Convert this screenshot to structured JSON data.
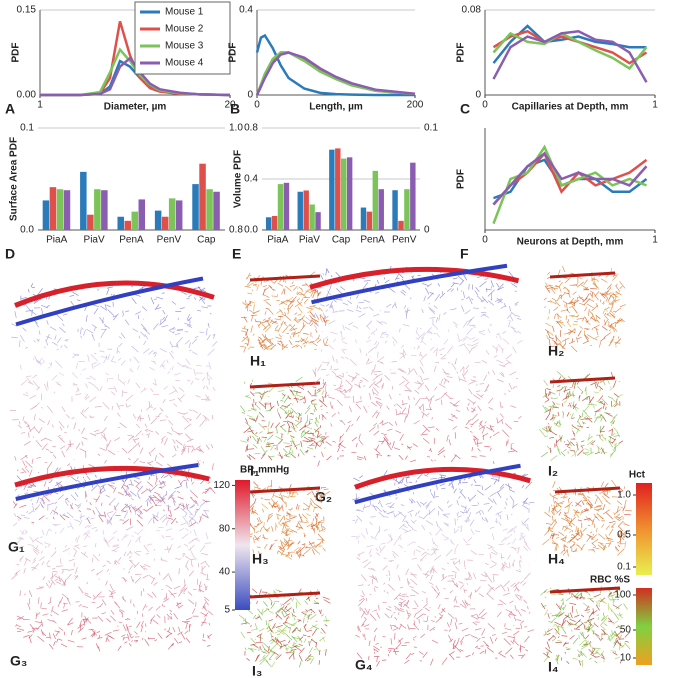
{
  "chart_data": [
    {
      "type": "line",
      "panel": "A",
      "xlabel": "Diameter, µm",
      "ylabel": "PDF",
      "xlim": [
        1,
        20
      ],
      "xticks": [
        1,
        20
      ],
      "ylim": [
        0,
        0.15
      ],
      "yticks": [
        {
          "value": 0,
          "label": "0.00"
        },
        0.15
      ],
      "legend": "top-right",
      "x": [
        1,
        3,
        5,
        7,
        8,
        9,
        10,
        11,
        12,
        13,
        15,
        17,
        20
      ],
      "series": [
        {
          "name": "Mouse 1",
          "color": "#2b7bba",
          "values": [
            0,
            0,
            0,
            0.002,
            0.015,
            0.06,
            0.05,
            0.03,
            0.016,
            0.008,
            0.003,
            0.001,
            0
          ]
        },
        {
          "name": "Mouse 2",
          "color": "#e0504a",
          "values": [
            0,
            0,
            0,
            0.003,
            0.03,
            0.13,
            0.07,
            0.03,
            0.012,
            0.006,
            0.002,
            0.001,
            0
          ]
        },
        {
          "name": "Mouse 3",
          "color": "#7cc45a",
          "values": [
            0,
            0,
            0,
            0.005,
            0.04,
            0.08,
            0.06,
            0.035,
            0.018,
            0.008,
            0.003,
            0.001,
            0
          ]
        },
        {
          "name": "Mouse 4",
          "color": "#8a5db0",
          "values": [
            0,
            0,
            0,
            0.002,
            0.01,
            0.05,
            0.065,
            0.04,
            0.02,
            0.01,
            0.004,
            0.001,
            0
          ]
        }
      ]
    },
    {
      "type": "line",
      "panel": "B",
      "xlabel": "Length, µm",
      "ylabel": "PDF",
      "xlim": [
        0,
        200
      ],
      "xticks": [
        0,
        200
      ],
      "ylim": [
        0,
        0.4
      ],
      "yticks": [
        0,
        0.4
      ],
      "x": [
        0,
        5,
        10,
        20,
        30,
        40,
        60,
        80,
        100,
        120,
        150,
        200
      ],
      "series": [
        {
          "color": "#2b7bba",
          "values": [
            0.2,
            0.27,
            0.28,
            0.22,
            0.14,
            0.08,
            0.03,
            0.01,
            0.004,
            0.002,
            0,
            0
          ]
        },
        {
          "color": "#e0504a",
          "values": [
            0,
            0.04,
            0.09,
            0.16,
            0.2,
            0.2,
            0.17,
            0.12,
            0.08,
            0.05,
            0.02,
            0.005
          ]
        },
        {
          "color": "#7cc45a",
          "values": [
            0,
            0.05,
            0.1,
            0.17,
            0.2,
            0.2,
            0.16,
            0.11,
            0.075,
            0.045,
            0.02,
            0.005
          ]
        },
        {
          "color": "#8a5db0",
          "values": [
            0,
            0.04,
            0.08,
            0.15,
            0.19,
            0.2,
            0.175,
            0.125,
            0.085,
            0.055,
            0.025,
            0.006
          ]
        }
      ]
    },
    {
      "type": "line",
      "panel": "C",
      "xlabel": "Capillaries at Depth, mm",
      "ylabel": "PDF",
      "xlim": [
        0,
        1
      ],
      "xticks": [
        0,
        1
      ],
      "ylim": [
        0,
        0.08
      ],
      "yticks": [
        0,
        0.08
      ],
      "x": [
        0.05,
        0.15,
        0.25,
        0.35,
        0.45,
        0.55,
        0.65,
        0.75,
        0.85,
        0.95
      ],
      "series": [
        {
          "color": "#2b7bba",
          "values": [
            0.03,
            0.05,
            0.065,
            0.05,
            0.052,
            0.055,
            0.05,
            0.048,
            0.045,
            0.045
          ]
        },
        {
          "color": "#e0504a",
          "values": [
            0.045,
            0.055,
            0.06,
            0.05,
            0.055,
            0.05,
            0.045,
            0.04,
            0.03,
            0.04
          ]
        },
        {
          "color": "#7cc45a",
          "values": [
            0.04,
            0.058,
            0.05,
            0.048,
            0.058,
            0.05,
            0.042,
            0.035,
            0.025,
            0.045
          ]
        },
        {
          "color": "#8a5db0",
          "values": [
            0.015,
            0.045,
            0.055,
            0.05,
            0.058,
            0.06,
            0.052,
            0.05,
            0.04,
            0.012
          ]
        }
      ]
    },
    {
      "type": "bar",
      "panel": "D",
      "ylabel": "Surface Area PDF",
      "categories": [
        "PiaA",
        "PiaV",
        "PenA",
        "PenV",
        "Cap"
      ],
      "ylim": [
        0,
        0.1
      ],
      "yticks": [
        {
          "value": 0,
          "label": "0.0"
        },
        0.1
      ],
      "y2lim": [
        0.8,
        1
      ],
      "y2ticks": [
        0.8,
        {
          "value": 1,
          "label": "1.0"
        }
      ],
      "series": [
        {
          "color": "#2b7bba",
          "values": [
            0.029,
            0.057,
            0.013,
            0.019,
            null
          ]
        },
        {
          "color": "#e0504a",
          "values": [
            0.042,
            0.015,
            0.009,
            0.013,
            null
          ]
        },
        {
          "color": "#7cc45a",
          "values": [
            0.04,
            0.04,
            0.018,
            0.031,
            null
          ]
        },
        {
          "color": "#8a5db0",
          "values": [
            0.039,
            0.039,
            0.03,
            0.029,
            null
          ]
        },
        {
          "color": "#2b7bba",
          "axis": "y2",
          "values": [
            null,
            null,
            null,
            null,
            0.89
          ]
        },
        {
          "color": "#e0504a",
          "axis": "y2",
          "values": [
            null,
            null,
            null,
            null,
            0.93
          ]
        },
        {
          "color": "#7cc45a",
          "axis": "y2",
          "values": [
            null,
            null,
            null,
            null,
            0.88
          ]
        },
        {
          "color": "#8a5db0",
          "axis": "y2",
          "values": [
            null,
            null,
            null,
            null,
            0.875
          ]
        }
      ]
    },
    {
      "type": "bar",
      "panel": "E",
      "ylabel": "Volume PDF",
      "categories": [
        "PiaA",
        "PiaV",
        "Cap",
        "PenA",
        "PenV"
      ],
      "ylim": [
        0,
        0.8
      ],
      "yticks": [
        {
          "value": 0,
          "label": "0.0"
        },
        0.4,
        0.8
      ],
      "y2lim": [
        0,
        0.1
      ],
      "y2ticks": [
        0,
        0.1
      ],
      "series": [
        {
          "color": "#2b7bba",
          "values": [
            0.1,
            0.3,
            0.63,
            null,
            null
          ]
        },
        {
          "color": "#e0504a",
          "values": [
            0.11,
            0.31,
            0.64,
            null,
            null
          ]
        },
        {
          "color": "#7cc45a",
          "values": [
            0.36,
            0.2,
            0.56,
            null,
            null
          ]
        },
        {
          "color": "#8a5db0",
          "values": [
            0.37,
            0.14,
            0.57,
            null,
            null
          ]
        },
        {
          "color": "#2b7bba",
          "axis": "y2",
          "values": [
            null,
            null,
            null,
            0.022,
            0.039
          ]
        },
        {
          "color": "#e0504a",
          "axis": "y2",
          "values": [
            null,
            null,
            null,
            0.018,
            0.009
          ]
        },
        {
          "color": "#7cc45a",
          "axis": "y2",
          "values": [
            null,
            null,
            null,
            0.058,
            0.04
          ]
        },
        {
          "color": "#8a5db0",
          "axis": "y2",
          "values": [
            null,
            null,
            null,
            0.04,
            0.066
          ]
        }
      ]
    },
    {
      "type": "line",
      "panel": "F",
      "xlabel": "Neurons at Depth, mm",
      "ylabel": "PDF",
      "xlim": [
        0,
        1
      ],
      "xticks": [
        0,
        1
      ],
      "ylim": [
        0,
        0.08
      ],
      "x": [
        0.05,
        0.15,
        0.25,
        0.35,
        0.45,
        0.55,
        0.65,
        0.75,
        0.85,
        0.95
      ],
      "series": [
        {
          "color": "#2b7bba",
          "values": [
            0.025,
            0.03,
            0.05,
            0.055,
            0.035,
            0.04,
            0.04,
            0.03,
            0.03,
            0.04
          ]
        },
        {
          "color": "#e0504a",
          "values": [
            0.02,
            0.035,
            0.045,
            0.06,
            0.03,
            0.045,
            0.035,
            0.04,
            0.045,
            0.055
          ]
        },
        {
          "color": "#7cc45a",
          "values": [
            0.005,
            0.04,
            0.045,
            0.065,
            0.035,
            0.04,
            0.045,
            0.035,
            0.04,
            0.035
          ]
        },
        {
          "color": "#8a5db0",
          "values": [
            0.02,
            0.035,
            0.05,
            0.06,
            0.04,
            0.045,
            0.04,
            0.04,
            0.035,
            0.05
          ]
        }
      ]
    }
  ],
  "images": [
    {
      "label": "G₁"
    },
    {
      "label": "H₁"
    },
    {
      "label": "I₁"
    },
    {
      "label": "G₂"
    },
    {
      "label": "H₂"
    },
    {
      "label": "I₂"
    },
    {
      "label": "G₃"
    },
    {
      "label": "H₃"
    },
    {
      "label": "I₃"
    },
    {
      "label": "G₄"
    },
    {
      "label": "H₄"
    },
    {
      "label": "I₄"
    }
  ],
  "colorbars": [
    {
      "title": "BP, mmHg",
      "lim": [
        5,
        125
      ],
      "ticks": [
        120,
        80,
        40,
        5
      ]
    },
    {
      "title": "Hct",
      "lim": [
        0,
        1.15
      ],
      "ticks": [
        {
          "value": 1,
          "label": "1.0"
        },
        0.5,
        0.1
      ]
    },
    {
      "title": "RBC %S",
      "lim": [
        0,
        110
      ],
      "ticks": [
        100,
        50,
        10
      ]
    }
  ]
}
